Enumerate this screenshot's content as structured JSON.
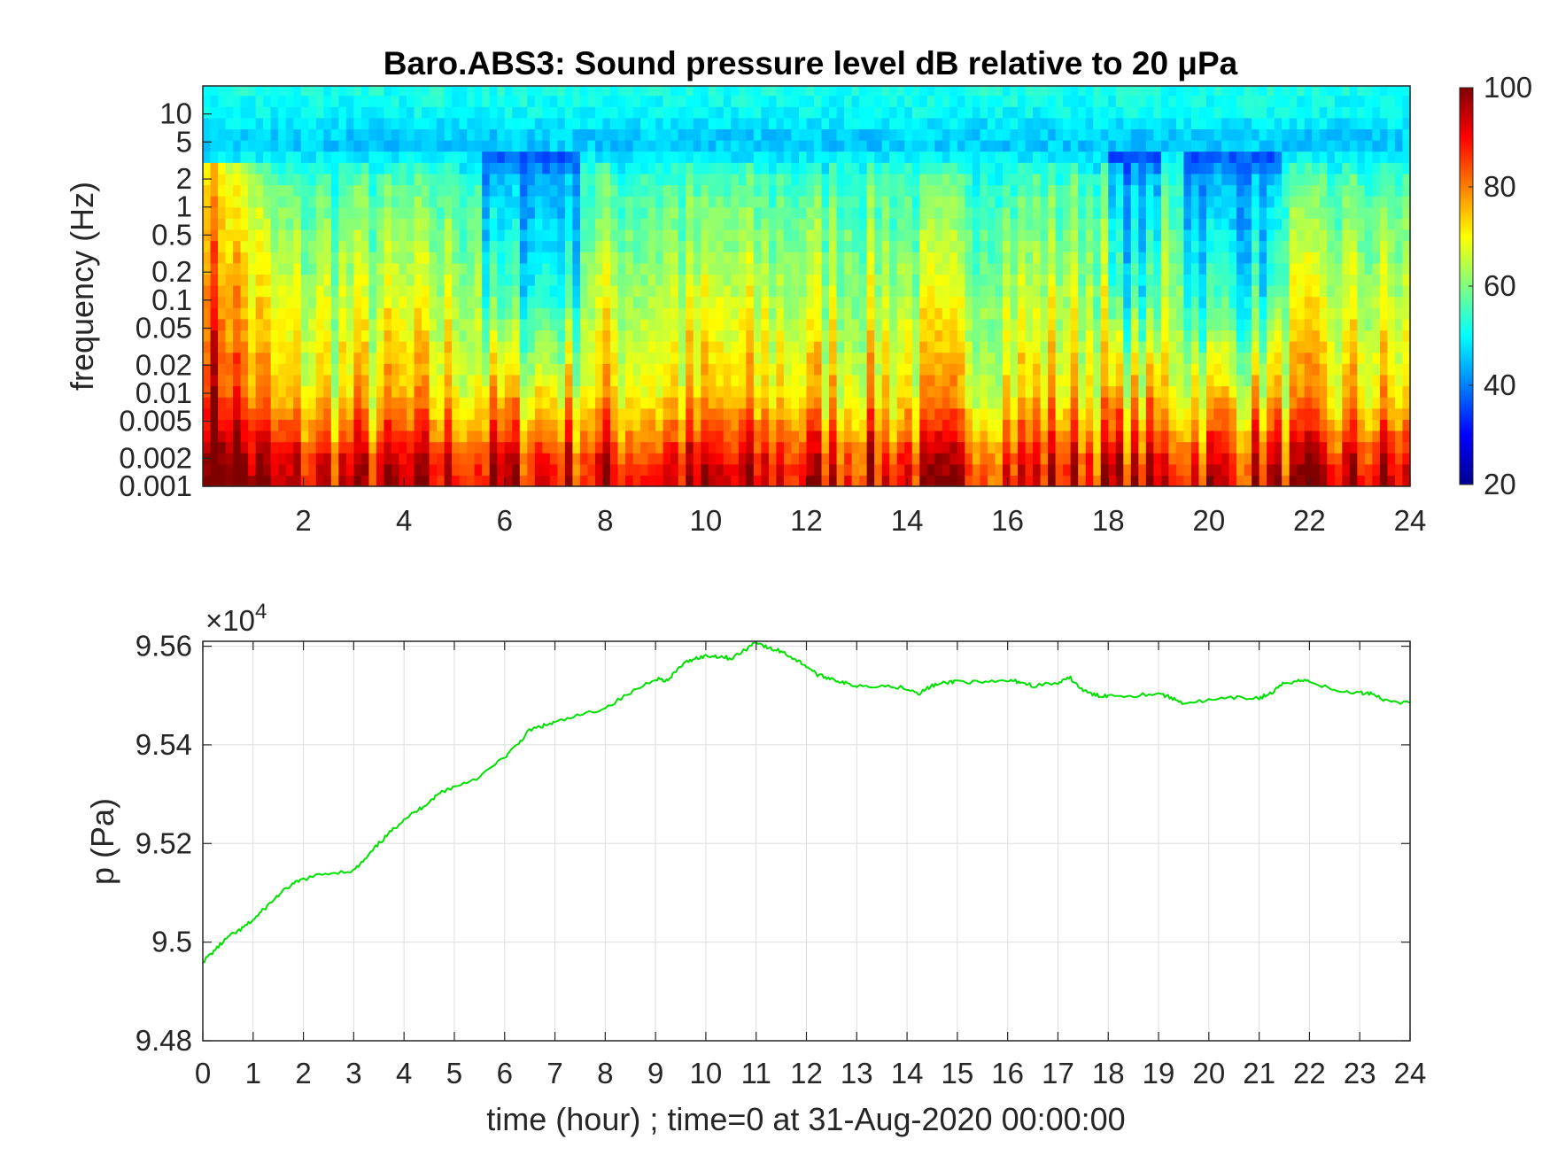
{
  "chart_data": [
    {
      "type": "heatmap",
      "title": "Baro.ABS3: Sound pressure level dB relative to 20 μPa",
      "xlabel": "",
      "ylabel": "frequency (Hz)",
      "xlim": [
        0,
        24
      ],
      "ylim": [
        0.001,
        20
      ],
      "y_scale": "log",
      "x_ticks": [
        2,
        4,
        6,
        8,
        10,
        12,
        14,
        16,
        18,
        20,
        22,
        24
      ],
      "y_ticks": [
        0.001,
        0.002,
        0.005,
        0.01,
        0.02,
        0.05,
        0.1,
        0.2,
        0.5,
        1,
        2,
        5,
        10
      ],
      "y_tick_labels": [
        "0.001",
        "0.002",
        "0.005",
        "0.01",
        "0.02",
        "0.05",
        "0.1",
        "0.2",
        "0.5",
        "1",
        "2",
        "5",
        "10"
      ],
      "colormap": "jet",
      "colorbar": {
        "range": [
          20,
          100
        ],
        "ticks": [
          20,
          40,
          60,
          80,
          100
        ],
        "placement": "right"
      },
      "level_profile": {
        "frequency_hz": [
          0.001,
          0.002,
          0.005,
          0.01,
          0.02,
          0.05,
          0.1,
          0.2,
          0.5,
          1,
          2,
          5,
          10,
          20
        ],
        "typical_db": [
          92,
          88,
          78,
          72,
          70,
          67,
          65,
          63,
          60,
          58,
          55,
          45,
          50,
          52
        ]
      },
      "quiet_intervals_hour": [
        [
          5.5,
          7.5
        ],
        [
          18,
          19
        ],
        [
          19.5,
          21.5
        ]
      ],
      "loud_onset_hour": [
        0,
        1.5
      ]
    },
    {
      "type": "line",
      "title": "",
      "xlabel": "time (hour) ; time=0 at 31-Aug-2020 00:00:00",
      "ylabel": "p (Pa)",
      "y_exponent_label": "×10",
      "y_exponent": "4",
      "xlim": [
        0,
        24
      ],
      "ylim": [
        94800,
        95610
      ],
      "grid": true,
      "x_ticks": [
        0,
        1,
        2,
        3,
        4,
        5,
        6,
        7,
        8,
        9,
        10,
        11,
        12,
        13,
        14,
        15,
        16,
        17,
        18,
        19,
        20,
        21,
        22,
        23,
        24
      ],
      "y_ticks": [
        94800,
        95000,
        95200,
        95400,
        95600
      ],
      "y_tick_labels": [
        "9.48",
        "9.5",
        "9.52",
        "9.54",
        "9.56"
      ],
      "line_color": "#00e000",
      "series": [
        {
          "x": [
            0,
            0.25,
            0.5,
            0.75,
            1,
            1.25,
            1.5,
            1.75,
            2,
            2.5,
            3,
            3.25,
            3.5,
            3.75,
            4,
            4.25,
            4.5,
            4.75,
            5,
            5.5,
            6,
            6.25,
            6.5,
            6.75,
            7,
            7.5,
            8,
            8.5,
            9,
            9.25,
            9.5,
            9.75,
            10,
            10.25,
            10.5,
            10.75,
            11,
            11.25,
            11.5,
            11.75,
            12,
            12.25,
            12.5,
            12.75,
            13,
            13.5,
            14,
            14.25,
            14.5,
            14.75,
            15,
            15.5,
            16,
            16.25,
            16.5,
            17,
            17.25,
            17.5,
            17.75,
            18,
            18.5,
            19,
            19.25,
            19.5,
            20,
            20.5,
            21,
            21.25,
            21.5,
            21.75,
            22,
            22.5,
            23,
            23.25,
            23.5,
            24
          ],
          "y": [
            94960,
            94985,
            95010,
            95025,
            95045,
            95070,
            95095,
            95115,
            95128,
            95140,
            95145,
            95170,
            95200,
            95225,
            95250,
            95265,
            95285,
            95305,
            95315,
            95335,
            95375,
            95400,
            95430,
            95438,
            95445,
            95460,
            95475,
            95505,
            95535,
            95530,
            95560,
            95575,
            95580,
            95580,
            95575,
            95590,
            95610,
            95595,
            95590,
            95575,
            95560,
            95540,
            95535,
            95525,
            95520,
            95520,
            95515,
            95505,
            95520,
            95525,
            95530,
            95525,
            95530,
            95528,
            95520,
            95525,
            95535,
            95510,
            95500,
            95500,
            95500,
            95505,
            95495,
            95485,
            95490,
            95495,
            95495,
            95505,
            95525,
            95530,
            95530,
            95510,
            95505,
            95505,
            95490,
            95485
          ]
        }
      ]
    }
  ]
}
